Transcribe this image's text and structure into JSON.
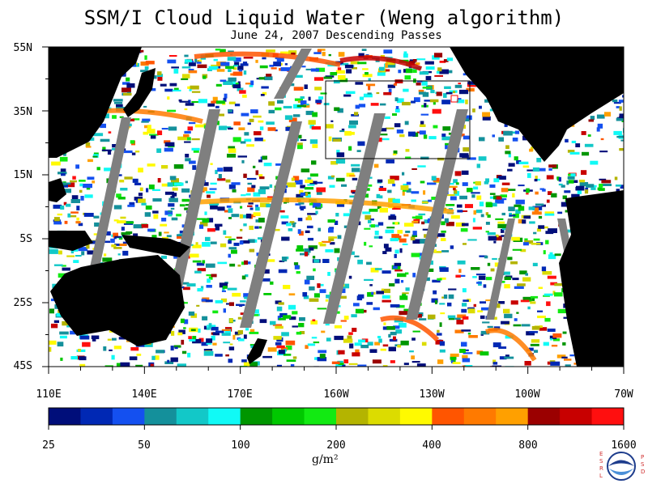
{
  "title": "SSM/I Cloud Liquid Water (Weng algorithm)",
  "subtitle": "June 24, 2007  Descending Passes",
  "map": {
    "lat_labels": [
      "55N",
      "35N",
      "15N",
      "5S",
      "25S",
      "45S"
    ],
    "lon_labels": [
      "110E",
      "140E",
      "170E",
      "160W",
      "130W",
      "100W",
      "70W"
    ],
    "background_color": "#ffffff",
    "land_color": "#000000",
    "no_data_color": "#7f7f7f"
  },
  "colorbar": {
    "colors": [
      "#000e7a",
      "#0028b4",
      "#1450f0",
      "#14909b",
      "#12c8c8",
      "#10faf6",
      "#009600",
      "#00c800",
      "#12ea12",
      "#b4b400",
      "#dcdc00",
      "#fffa00",
      "#ff5500",
      "#ff7a00",
      "#ffa000",
      "#9b0000",
      "#c80000",
      "#ff0f0f"
    ],
    "labels": [
      "25",
      "50",
      "100",
      "200",
      "400",
      "800",
      "1600"
    ],
    "units": "g/m²"
  },
  "logo": {
    "left_letters": "ESRL",
    "right_letters": "PSD",
    "center_text": "NOAA"
  }
}
